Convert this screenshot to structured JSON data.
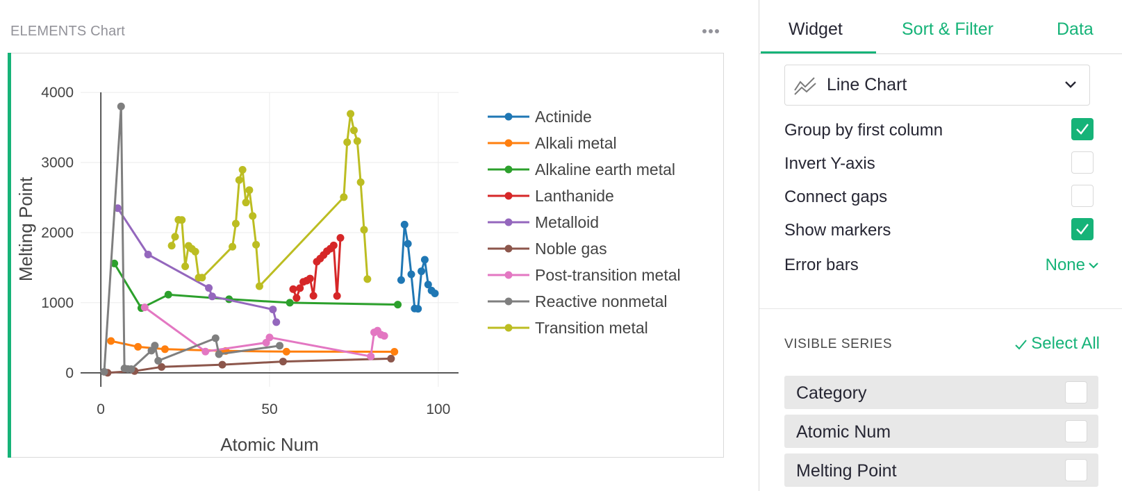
{
  "widget": {
    "title": "ELEMENTS Chart"
  },
  "panel": {
    "tabs": [
      "Widget",
      "Sort & Filter",
      "Data"
    ],
    "chart_type": "Line Chart",
    "options": [
      {
        "label": "Group by first column",
        "checked": true
      },
      {
        "label": "Invert Y-axis",
        "checked": false
      },
      {
        "label": "Connect gaps",
        "checked": false
      },
      {
        "label": "Show markers",
        "checked": true
      }
    ],
    "error_bars": {
      "label": "Error bars",
      "value": "None"
    },
    "visible_series": {
      "heading": "VISIBLE SERIES",
      "select_all": "Select All",
      "items": [
        {
          "label": "Category",
          "checked": false
        },
        {
          "label": "Atomic Num",
          "checked": false
        },
        {
          "label": "Melting Point",
          "checked": false
        }
      ]
    },
    "accent_color": "#16b378"
  },
  "chart_data": {
    "type": "line",
    "xlabel": "Atomic Num",
    "ylabel": "Melting Point",
    "xlim": [
      -6,
      106
    ],
    "ylim": [
      -200,
      4100
    ],
    "xticks": [
      0,
      50,
      100
    ],
    "yticks": [
      0,
      1000,
      2000,
      3000,
      4000
    ],
    "grid": true,
    "legend_position": "right",
    "markers": true,
    "series": [
      {
        "name": "Actinide",
        "color": "#1f77b4",
        "x": [
          89,
          90,
          91,
          92,
          93,
          94,
          95,
          96,
          97,
          98,
          99
        ],
        "y": [
          1323,
          2115,
          1841,
          1405,
          917,
          913,
          1449,
          1613,
          1259,
          1173,
          1133
        ]
      },
      {
        "name": "Alkali metal",
        "color": "#ff7f0e",
        "x": [
          3,
          11,
          19,
          37,
          55,
          87
        ],
        "y": [
          454,
          371,
          337,
          312,
          302,
          300
        ]
      },
      {
        "name": "Alkaline earth metal",
        "color": "#2ca02c",
        "x": [
          4,
          12,
          20,
          38,
          56,
          88
        ],
        "y": [
          1560,
          923,
          1115,
          1050,
          1000,
          973
        ]
      },
      {
        "name": "Lanthanide",
        "color": "#d62728",
        "x": [
          57,
          58,
          59,
          60,
          61,
          62,
          63,
          64,
          65,
          66,
          67,
          68,
          69,
          70,
          71
        ],
        "y": [
          1193,
          1068,
          1208,
          1297,
          1315,
          1345,
          1099,
          1585,
          1629,
          1680,
          1734,
          1770,
          1818,
          1097,
          1925
        ]
      },
      {
        "name": "Metalloid",
        "color": "#9467bd",
        "x": [
          5,
          14,
          32,
          33,
          51,
          52
        ],
        "y": [
          2349,
          1687,
          1211,
          1090,
          904,
          723
        ]
      },
      {
        "name": "Noble gas",
        "color": "#8c564b",
        "x": [
          2,
          10,
          18,
          36,
          54,
          86
        ],
        "y": [
          1,
          25,
          84,
          116,
          161,
          202
        ]
      },
      {
        "name": "Post-transition metal",
        "color": "#e377c2",
        "x": [
          13,
          31,
          49,
          50,
          80,
          81,
          82,
          83,
          84
        ],
        "y": [
          933,
          303,
          430,
          505,
          234,
          577,
          601,
          544,
          527
        ]
      },
      {
        "name": "Reactive nonmetal",
        "color": "#7f7f7f",
        "x": [
          1,
          6,
          7,
          8,
          9,
          15,
          16,
          17,
          34,
          35,
          53
        ],
        "y": [
          14,
          3800,
          63,
          54,
          53,
          317,
          388,
          172,
          494,
          266,
          387
        ]
      },
      {
        "name": "Transition metal",
        "color": "#bcbd22",
        "x": [
          21,
          22,
          23,
          24,
          25,
          26,
          27,
          28,
          29,
          30,
          39,
          40,
          41,
          42,
          43,
          44,
          45,
          46,
          47,
          72,
          73,
          74,
          75,
          76,
          77,
          78,
          79
        ],
        "y": [
          1814,
          1941,
          2183,
          2180,
          1519,
          1811,
          1768,
          1728,
          1358,
          1358,
          1799,
          2128,
          2750,
          2896,
          2430,
          2607,
          2237,
          1828,
          1235,
          2506,
          3290,
          3695,
          3459,
          3306,
          2719,
          2041,
          1337
        ]
      }
    ]
  }
}
